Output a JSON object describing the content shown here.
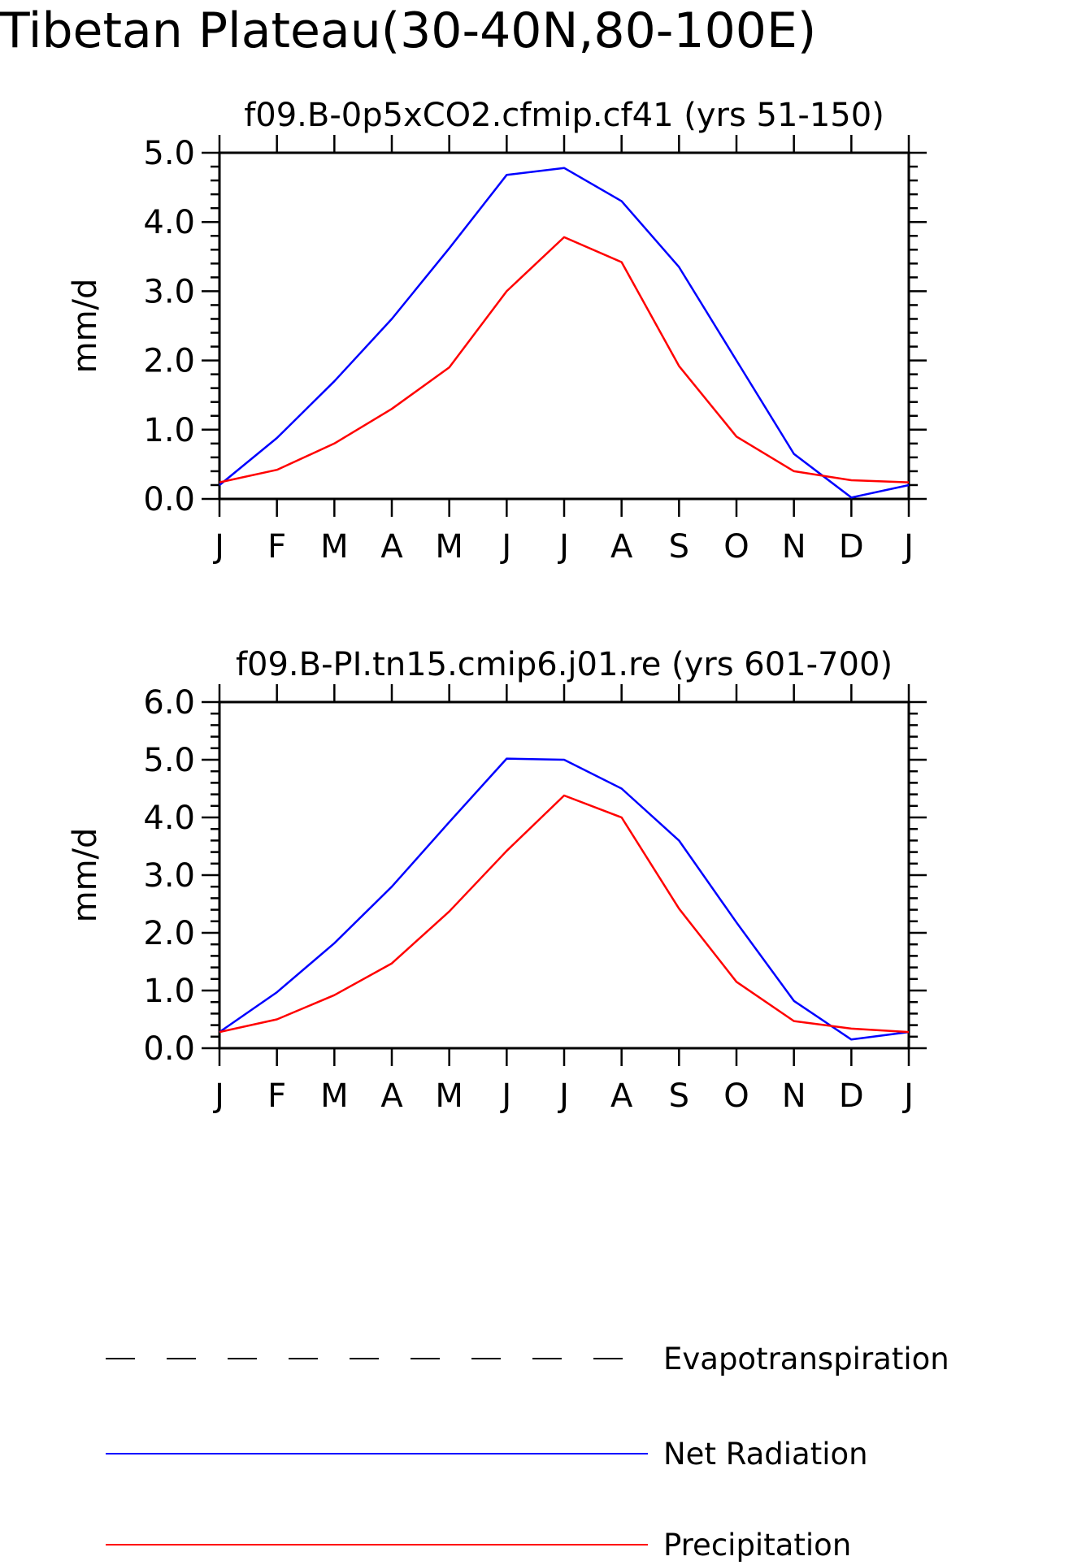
{
  "figure": {
    "title": "Tibetan Plateau(30-40N,80-100E)"
  },
  "legend": {
    "placement": "bottom",
    "entries": [
      {
        "label": "Evapotranspiration",
        "color": "#000000",
        "style": "dashed"
      },
      {
        "label": "Net Radiation",
        "color": "#0000ff",
        "style": "solid"
      },
      {
        "label": "Precipitation",
        "color": "#ff0000",
        "style": "solid"
      }
    ]
  },
  "chart_data": [
    {
      "type": "line",
      "title": "f09.B-0p5xCO2.cfmip.cf41 (yrs 51-150)",
      "ylabel": "mm/d",
      "xlabel": "",
      "ylim": [
        0,
        5
      ],
      "yticks": [
        "0.0",
        "1.0",
        "2.0",
        "3.0",
        "4.0",
        "5.0"
      ],
      "categories": [
        "J",
        "F",
        "M",
        "A",
        "M",
        "J",
        "J",
        "A",
        "S",
        "O",
        "N",
        "D",
        "J"
      ],
      "grid": false,
      "series": [
        {
          "name": "Net Radiation",
          "color": "#0000ff",
          "values": [
            0.2,
            0.88,
            1.7,
            2.6,
            3.62,
            4.68,
            4.78,
            4.3,
            3.35,
            2.0,
            0.65,
            0.02,
            0.2
          ]
        },
        {
          "name": "Precipitation",
          "color": "#ff0000",
          "values": [
            0.24,
            0.42,
            0.8,
            1.3,
            1.9,
            3.0,
            3.78,
            3.42,
            1.92,
            0.9,
            0.4,
            0.27,
            0.24
          ]
        }
      ]
    },
    {
      "type": "line",
      "title": "f09.B-PI.tn15.cmip6.j01.re (yrs 601-700)",
      "ylabel": "mm/d",
      "xlabel": "",
      "ylim": [
        0,
        6
      ],
      "yticks": [
        "0.0",
        "1.0",
        "2.0",
        "3.0",
        "4.0",
        "5.0",
        "6.0"
      ],
      "categories": [
        "J",
        "F",
        "M",
        "A",
        "M",
        "J",
        "J",
        "A",
        "S",
        "O",
        "N",
        "D",
        "J"
      ],
      "grid": false,
      "series": [
        {
          "name": "Net Radiation",
          "color": "#0000ff",
          "values": [
            0.28,
            0.97,
            1.82,
            2.8,
            3.92,
            5.02,
            5.0,
            4.5,
            3.6,
            2.18,
            0.82,
            0.15,
            0.28
          ]
        },
        {
          "name": "Precipitation",
          "color": "#ff0000",
          "values": [
            0.28,
            0.5,
            0.92,
            1.47,
            2.37,
            3.42,
            4.38,
            4.0,
            2.42,
            1.15,
            0.47,
            0.34,
            0.28
          ]
        }
      ]
    }
  ]
}
